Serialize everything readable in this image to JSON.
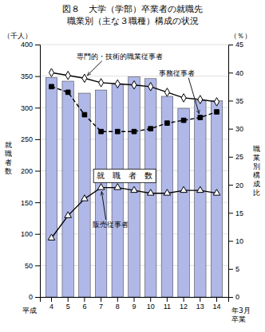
{
  "chart_data": {
    "type": "bar",
    "title": "図８　大学（学部）卒業者の就職先",
    "subtitle": "職業別（主な３職種）構成の状況",
    "categories": [
      "4",
      "5",
      "6",
      "7",
      "8",
      "9",
      "10",
      "11",
      "12",
      "13",
      "14"
    ],
    "x_label_prefix": "平成",
    "x_label_suffix": "年3月\n卒業",
    "y_label": "就\n職\n者\n数",
    "y_label_unit": "（千人）",
    "y2_label": "職\n業\n別\n構\n成\n比",
    "y2_label_unit": "（％）",
    "ylim": [
      0,
      400
    ],
    "yticks": [
      0,
      50,
      100,
      150,
      200,
      250,
      300,
      350,
      400
    ],
    "y2lim": [
      0,
      45
    ],
    "y2ticks": [
      0,
      5,
      10,
      15,
      20,
      25,
      30,
      35,
      40,
      45
    ],
    "grid": true,
    "series": [
      {
        "name": "就　職　者　数",
        "type": "bar",
        "color": "#b0b8e8",
        "values": [
          348,
          342,
          323,
          328,
          337,
          349,
          346,
          318,
          299,
          311,
          311
        ]
      },
      {
        "name": "専門的・技術的職業従事者",
        "type": "line",
        "axis": "y2",
        "color": "#000000",
        "marker": "diamond-open",
        "line_style": "solid",
        "values": [
          40.0,
          39.5,
          39.0,
          38.2,
          38.0,
          37.8,
          37.5,
          36.5,
          35.5,
          35.2,
          34.8
        ]
      },
      {
        "name": "事務従事者",
        "type": "line",
        "axis": "y2",
        "color": "#000000",
        "marker": "square",
        "line_style": "dashed",
        "values": [
          37.5,
          36.5,
          32.5,
          29.5,
          29.5,
          29.5,
          30.0,
          31.0,
          31.5,
          32.0,
          33.0
        ]
      },
      {
        "name": "販売従事者",
        "type": "line",
        "axis": "y2",
        "color": "#000000",
        "marker": "triangle-open",
        "line_style": "solid",
        "values": [
          10.5,
          14.5,
          17.5,
          19.5,
          19.5,
          19.0,
          18.5,
          18.5,
          19.0,
          19.0,
          18.5
        ]
      }
    ]
  }
}
